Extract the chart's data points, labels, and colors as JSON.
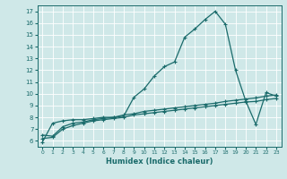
{
  "xlabel": "Humidex (Indice chaleur)",
  "xlim": [
    -0.5,
    23.5
  ],
  "ylim": [
    5.5,
    17.5
  ],
  "xticks": [
    0,
    1,
    2,
    3,
    4,
    5,
    6,
    7,
    8,
    9,
    10,
    11,
    12,
    13,
    14,
    15,
    16,
    17,
    18,
    19,
    20,
    21,
    22,
    23
  ],
  "yticks": [
    6,
    7,
    8,
    9,
    10,
    11,
    12,
    13,
    14,
    15,
    16,
    17
  ],
  "bg_color": "#cfe8e8",
  "grid_color": "#b8d8d8",
  "line_color": "#1a6b6b",
  "line1_x": [
    0,
    1,
    2,
    3,
    4,
    5,
    6,
    7,
    8,
    9,
    10,
    11,
    12,
    13,
    14,
    15,
    16,
    17,
    18,
    19,
    20,
    21,
    22,
    23
  ],
  "line1_y": [
    5.9,
    7.5,
    7.7,
    7.8,
    7.8,
    7.9,
    8.0,
    8.0,
    8.1,
    9.7,
    10.4,
    11.5,
    12.3,
    12.7,
    14.8,
    15.5,
    16.3,
    17.0,
    15.9,
    12.0,
    9.4,
    7.4,
    10.1,
    9.8
  ],
  "line2_x": [
    0,
    1,
    2,
    3,
    4,
    5,
    6,
    7,
    8,
    9,
    10,
    11,
    12,
    13,
    14,
    15,
    16,
    17,
    18,
    19,
    20,
    21,
    22,
    23
  ],
  "line2_y": [
    6.5,
    6.4,
    7.2,
    7.5,
    7.6,
    7.8,
    7.9,
    8.0,
    8.2,
    8.3,
    8.5,
    8.6,
    8.7,
    8.8,
    8.9,
    9.0,
    9.1,
    9.2,
    9.35,
    9.45,
    9.55,
    9.65,
    9.8,
    9.9
  ],
  "line3_x": [
    0,
    1,
    2,
    3,
    4,
    5,
    6,
    7,
    8,
    9,
    10,
    11,
    12,
    13,
    14,
    15,
    16,
    17,
    18,
    19,
    20,
    21,
    22,
    23
  ],
  "line3_y": [
    6.2,
    6.3,
    7.0,
    7.3,
    7.5,
    7.7,
    7.8,
    7.9,
    8.0,
    8.2,
    8.3,
    8.4,
    8.5,
    8.6,
    8.7,
    8.8,
    8.9,
    9.0,
    9.1,
    9.2,
    9.3,
    9.35,
    9.5,
    9.6
  ]
}
